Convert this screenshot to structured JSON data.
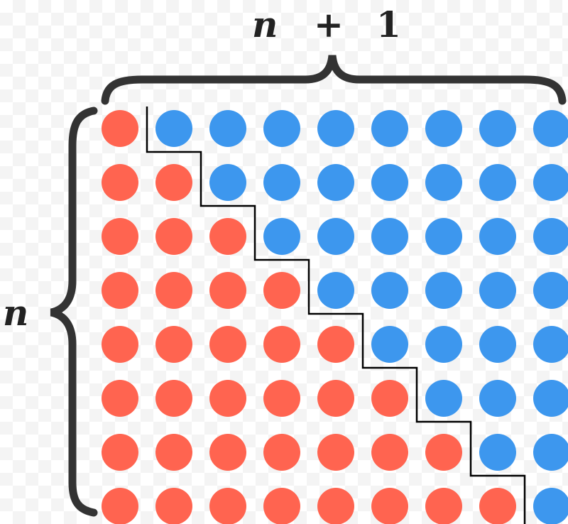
{
  "labels": {
    "top_n": "n",
    "top_plus": "+",
    "top_one": "1",
    "left": "n"
  },
  "grid": {
    "rows": 8,
    "cols": 9,
    "red_counts": [
      1,
      2,
      3,
      4,
      5,
      6,
      7,
      8
    ]
  },
  "colors": {
    "red": "#FF6450",
    "blue": "#3D97EE",
    "brace": "#333333",
    "staircase": "#000000"
  }
}
